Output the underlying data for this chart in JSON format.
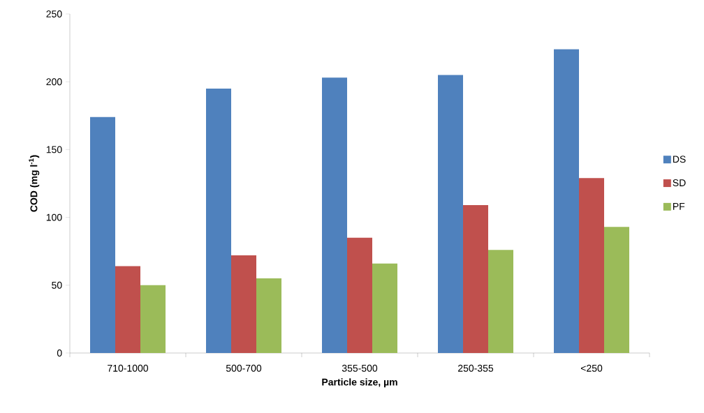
{
  "chart_data": {
    "type": "bar",
    "xlabel": "Particle size, µm",
    "ylabel": "COD  (mg l$^{-1}$)",
    "categories": [
      "710-1000",
      "500-700",
      "355-500",
      "250-355",
      "<250"
    ],
    "series": [
      {
        "name": "DS",
        "color": "#4f81bd",
        "values": [
          174,
          195,
          203,
          205,
          224
        ]
      },
      {
        "name": "SD",
        "color": "#c0504d",
        "values": [
          64,
          72,
          85,
          109,
          129
        ]
      },
      {
        "name": "PF",
        "color": "#9bbb59",
        "values": [
          50,
          55,
          66,
          76,
          93
        ]
      }
    ],
    "ylim": [
      0,
      250
    ],
    "yticks": [
      0,
      50,
      100,
      150,
      200,
      250
    ],
    "grid": false,
    "legend": "right"
  }
}
